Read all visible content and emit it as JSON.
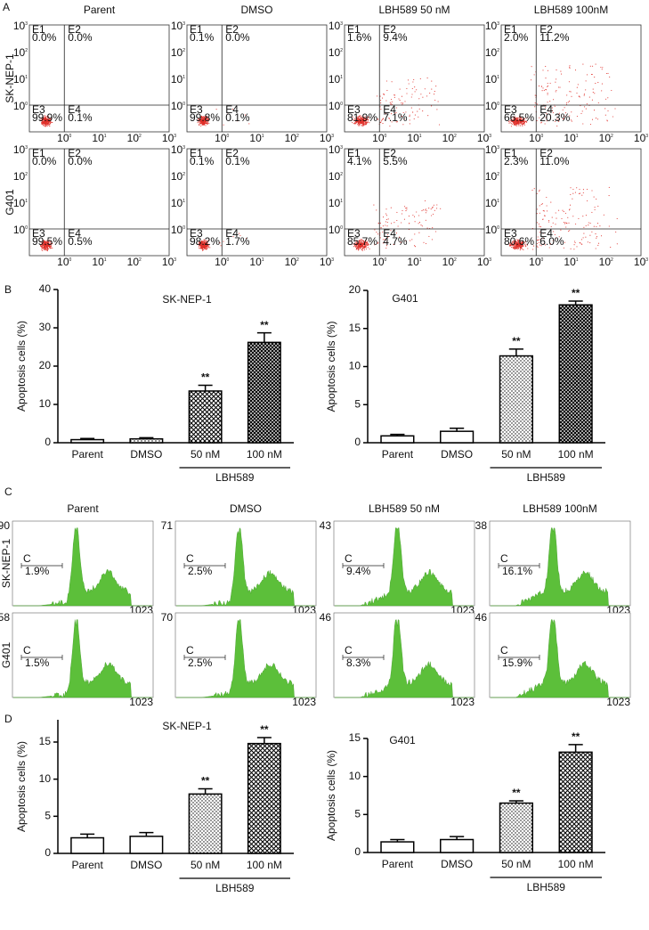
{
  "panel_labels": [
    "A",
    "B",
    "C",
    "D"
  ],
  "column_titles": [
    "Parent",
    "DMSO",
    "LBH589 50 nM",
    "LBH589 100nM"
  ],
  "row_titles": [
    "SK-NEP-1",
    "G401"
  ],
  "flow_axis": {
    "base": "10",
    "exponents": [
      "0",
      "1",
      "2",
      "3"
    ]
  },
  "quadrant_labels": [
    "E1",
    "E2",
    "E3",
    "E4"
  ],
  "flow_percentages": [
    [
      [
        "0.0%",
        "0.0%",
        "99.9%",
        "0.1%"
      ],
      [
        "0.1%",
        "0.0%",
        "99.8%",
        "0.1%"
      ],
      [
        "1.6%",
        "9.4%",
        "81.9%",
        "7.1%"
      ],
      [
        "2.0%",
        "11.2%",
        "66.5%",
        "20.3%"
      ]
    ],
    [
      [
        "0.0%",
        "0.0%",
        "99.5%",
        "0.5%"
      ],
      [
        "0.1%",
        "0.1%",
        "98.2%",
        "1.7%"
      ],
      [
        "4.1%",
        "5.5%",
        "85.7%",
        "4.7%"
      ],
      [
        "2.3%",
        "11.0%",
        "80.6%",
        "6.0%"
      ]
    ]
  ],
  "histograms": {
    "gate_label": "C",
    "x_max": "1023",
    "y_max": [
      [
        "90",
        "71",
        "43",
        "38"
      ],
      [
        "58",
        "70",
        "46",
        "46"
      ]
    ],
    "percentages": [
      [
        "1.9%",
        "2.5%",
        "9.4%",
        "16.1%"
      ],
      [
        "1.5%",
        "2.5%",
        "8.3%",
        "15.9%"
      ]
    ]
  },
  "chart_data": [
    {
      "type": "bar",
      "title": "SK-NEP-1",
      "y_label": "Apoptosis cells (%)",
      "categories": [
        "Parent",
        "DMSO",
        "50 nM",
        "100 nM"
      ],
      "group_label": "LBH589",
      "values": [
        0.8,
        1.0,
        13.5,
        26.2
      ],
      "errors": [
        0.3,
        0.3,
        1.5,
        2.5
      ],
      "value_annotations": [
        null,
        null,
        "**",
        "**"
      ],
      "patterns": [
        "none",
        "dots",
        "crosshatch",
        "crosshatch-dense"
      ],
      "color": "#000000",
      "ylim": [
        0,
        40
      ],
      "yticks": [
        0,
        10,
        20,
        30,
        40
      ]
    },
    {
      "type": "bar",
      "title": "G401",
      "y_label": "Apoptosis cells (%)",
      "categories": [
        "Parent",
        "DMSO",
        "50 nM",
        "100 nM"
      ],
      "group_label": "LBH589",
      "values": [
        0.9,
        1.5,
        11.4,
        18.1
      ],
      "errors": [
        0.2,
        0.4,
        0.9,
        0.5
      ],
      "value_annotations": [
        null,
        null,
        "**",
        "**"
      ],
      "patterns": [
        "none",
        "none",
        "dots",
        "crosshatch-dense"
      ],
      "color": "#000000",
      "ylim": [
        0,
        20
      ],
      "yticks": [
        0,
        5,
        10,
        15,
        20
      ]
    },
    {
      "type": "bar",
      "title": "SK-NEP-1",
      "y_label": "Apoptosis cells (%)",
      "categories": [
        "Parent",
        "DMSO",
        "50 nM",
        "100 nM"
      ],
      "group_label": "LBH589",
      "values": [
        2.1,
        2.3,
        8.0,
        14.8
      ],
      "errors": [
        0.5,
        0.5,
        0.7,
        0.8
      ],
      "value_annotations": [
        null,
        null,
        "**",
        "**"
      ],
      "patterns": [
        "none",
        "none",
        "dots",
        "crosshatch"
      ],
      "color": "#000000",
      "ylim": [
        0,
        18
      ],
      "yticks": [
        0,
        5,
        10,
        15
      ]
    },
    {
      "type": "bar",
      "title": "G401",
      "y_label": "Apoptosis cells (%)",
      "categories": [
        "Parent",
        "DMSO",
        "50 nM",
        "100 nM"
      ],
      "group_label": "LBH589",
      "values": [
        1.4,
        1.7,
        6.5,
        13.2
      ],
      "errors": [
        0.3,
        0.4,
        0.3,
        1.0
      ],
      "value_annotations": [
        null,
        null,
        "**",
        "**"
      ],
      "patterns": [
        "none",
        "none",
        "dots",
        "crosshatch"
      ],
      "color": "#000000",
      "ylim": [
        0,
        15
      ],
      "yticks": [
        0,
        5,
        10,
        15
      ]
    }
  ]
}
